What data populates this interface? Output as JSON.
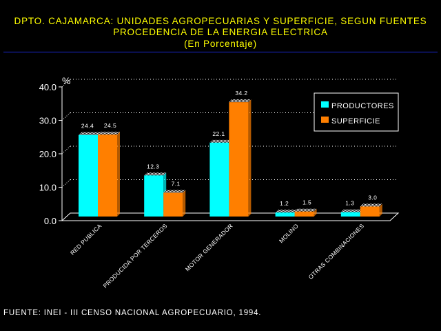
{
  "header": {
    "line1": "DPTO. CAJAMARCA: UNIDADES AGROPECUARIAS Y SUPERFICIE, SEGUN FUENTES",
    "line2": "PROCEDENCIA DE LA ENERGIA ELECTRICA",
    "line3": "(En Porcentaje)"
  },
  "footer": {
    "source": "FUENTE: INEI - III CENSO NACIONAL AGROPECUARIO, 1994."
  },
  "colors": {
    "title": "#ffff00",
    "productores": "#00ffff",
    "superficie": "#ff7f00",
    "rule": "#1a2ad8",
    "background": "#000000"
  },
  "chart_data": {
    "type": "bar",
    "ylabel": "%",
    "ylim": [
      0,
      40
    ],
    "yticks": [
      "0.0",
      "10.0",
      "20.0",
      "30.0",
      "40.0"
    ],
    "grid": true,
    "legend_position": "top-right",
    "categories": [
      "RED PUBLICA",
      "PRODUCIDA POR TERCEROS",
      "MOTOR GENERADOR",
      "MOLINO",
      "OTRAS COMBINACIONES"
    ],
    "series": [
      {
        "name": "PRODUCTORES",
        "values": [
          24.4,
          12.3,
          22.1,
          1.2,
          1.3
        ],
        "labels": [
          "24.4",
          "12.3",
          "22.1",
          "1.2",
          "1.3"
        ],
        "color": "#00ffff"
      },
      {
        "name": "SUPERFICIE",
        "values": [
          24.5,
          7.1,
          34.2,
          1.5,
          3.0
        ],
        "labels": [
          "24.5",
          "7.1",
          "34.2",
          "1.5",
          "3.0"
        ],
        "color": "#ff7f00"
      }
    ]
  }
}
